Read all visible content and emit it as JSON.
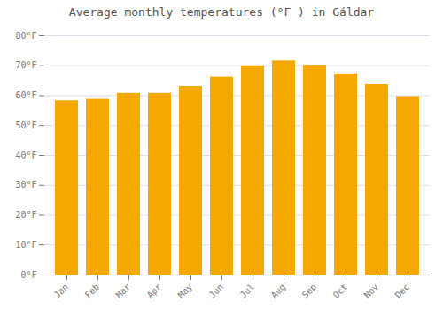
{
  "chart_data": {
    "type": "bar",
    "title": "Average monthly temperatures (°F ) in Gáldar",
    "categories": [
      "Jan",
      "Feb",
      "Mar",
      "Apr",
      "May",
      "Jun",
      "Jul",
      "Aug",
      "Sep",
      "Oct",
      "Nov",
      "Dec"
    ],
    "values": [
      58.3,
      58.8,
      60.8,
      60.8,
      63.1,
      66.2,
      70.0,
      71.6,
      70.2,
      67.3,
      63.7,
      59.7
    ],
    "color": "#F5A800",
    "ylim": [
      0,
      80
    ],
    "yticks": [
      {
        "value": 0,
        "label": "0°F"
      },
      {
        "value": 10,
        "label": "10°F"
      },
      {
        "value": 20,
        "label": "20°F"
      },
      {
        "value": 30,
        "label": "30°F"
      },
      {
        "value": 40,
        "label": "40°F"
      },
      {
        "value": 50,
        "label": "50°F"
      },
      {
        "value": 60,
        "label": "60°F"
      },
      {
        "value": 70,
        "label": "70°F"
      },
      {
        "value": 80,
        "label": "80°F"
      }
    ],
    "grid": true
  }
}
